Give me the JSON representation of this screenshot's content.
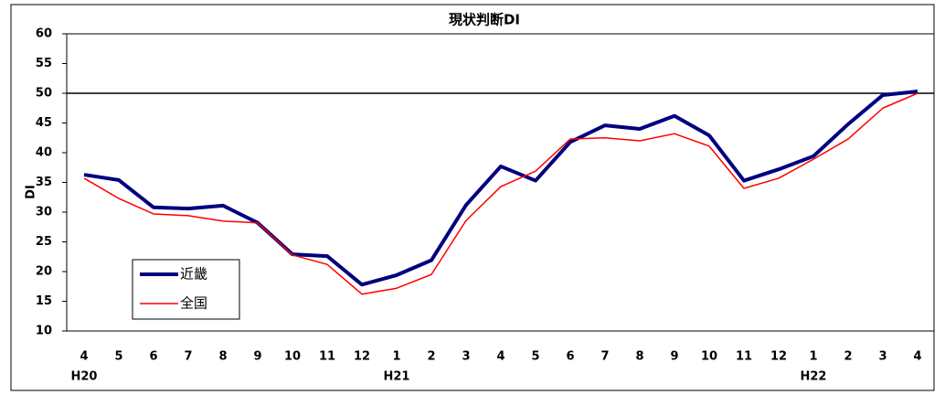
{
  "chart_data": {
    "type": "line",
    "title": "現状判断DI",
    "y_label": "DI",
    "categories": [
      "4",
      "5",
      "6",
      "7",
      "8",
      "9",
      "10",
      "11",
      "12",
      "1",
      "2",
      "3",
      "4",
      "5",
      "6",
      "7",
      "8",
      "9",
      "10",
      "11",
      "12",
      "1",
      "2",
      "3",
      "4"
    ],
    "year_labels": [
      "H20",
      null,
      null,
      null,
      null,
      null,
      null,
      null,
      null,
      "H21",
      null,
      null,
      null,
      null,
      null,
      null,
      null,
      null,
      null,
      null,
      null,
      "H22",
      null,
      null,
      null
    ],
    "series": [
      {
        "name": "近畿",
        "color": "#000080",
        "values": [
          36.3,
          35.4,
          30.8,
          30.6,
          31.1,
          28.2,
          22.9,
          22.6,
          17.8,
          19.4,
          21.9,
          31.2,
          37.7,
          35.3,
          41.8,
          44.6,
          44.0,
          46.2,
          42.9,
          35.3,
          37.2,
          39.4,
          44.8,
          49.7,
          50.3
        ]
      },
      {
        "name": "全国",
        "color": "#ff0000",
        "values": [
          35.7,
          32.3,
          29.7,
          29.4,
          28.5,
          28.2,
          22.8,
          21.2,
          16.2,
          17.2,
          19.5,
          28.6,
          34.3,
          36.9,
          42.3,
          42.5,
          42.0,
          43.2,
          41.1,
          34.0,
          35.7,
          38.9,
          42.3,
          47.5,
          50.0
        ]
      }
    ],
    "ylim": [
      10,
      60
    ],
    "yticks": [
      10,
      15,
      20,
      25,
      30,
      35,
      40,
      45,
      50,
      55,
      60
    ],
    "reference_line": 50,
    "legend": "lower-left"
  }
}
